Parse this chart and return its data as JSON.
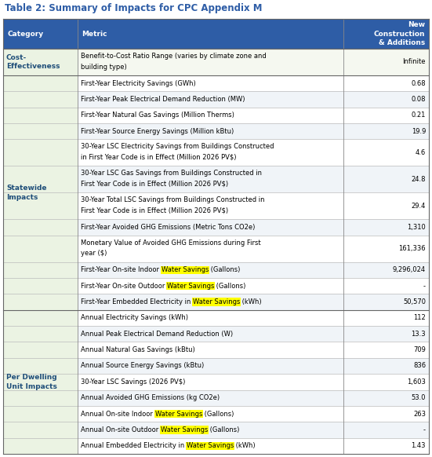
{
  "title": "Table 2: Summary of Impacts for CPC Appendix M",
  "title_color": "#2E5DA6",
  "header_bg": "#2E5DA6",
  "header_text_color": "#FFFFFF",
  "col_headers": [
    "Category",
    "Metric",
    "New\nConstruction\n& Additions"
  ],
  "category_bg": "#EBF3E3",
  "border_color": "#888888",
  "highlight_color": "#FFFF00",
  "rows": [
    {
      "category": "Cost-\nEffectiveness",
      "section_start": true,
      "section_end": true,
      "metric": "Benefit-to-Cost Ratio Range (varies by climate zone and\nbuilding type)",
      "metric_parts": null,
      "value": "Infinite",
      "row_bg": "#F5F8F0"
    },
    {
      "category": "",
      "section_start": false,
      "section_end": false,
      "metric": "First-Year Electricity Savings (GWh)",
      "metric_parts": null,
      "value": "0.68",
      "row_bg": "#FFFFFF"
    },
    {
      "category": "",
      "section_start": false,
      "section_end": false,
      "metric": "First-Year Peak Electrical Demand Reduction (MW)",
      "metric_parts": null,
      "value": "0.08",
      "row_bg": "#F0F4F8"
    },
    {
      "category": "",
      "section_start": false,
      "section_end": false,
      "metric": "First-Year Natural Gas Savings (Million Therms)",
      "metric_parts": null,
      "value": "0.21",
      "row_bg": "#FFFFFF"
    },
    {
      "category": "",
      "section_start": false,
      "section_end": false,
      "metric": "First-Year Source Energy Savings (Million kBtu)",
      "metric_parts": null,
      "value": "19.9",
      "row_bg": "#F0F4F8"
    },
    {
      "category": "",
      "section_start": false,
      "section_end": false,
      "metric": "30-Year LSC Electricity Savings from Buildings Constructed\nin First Year Code is in Effect (Million 2026 PV$)",
      "metric_parts": null,
      "value": "4.6",
      "row_bg": "#FFFFFF"
    },
    {
      "category": "Statewide\nImpacts",
      "section_start": true,
      "section_end": false,
      "metric": "30-Year LSC Gas Savings from Buildings Constructed in\nFirst Year Code is in Effect (Million 2026 PV$)",
      "metric_parts": null,
      "value": "24.8",
      "row_bg": "#F0F4F8"
    },
    {
      "category": "",
      "section_start": false,
      "section_end": false,
      "metric": "30-Year Total LSC Savings from Buildings Constructed in\nFirst Year Code is in Effect (Million 2026 PV$)",
      "metric_parts": null,
      "value": "29.4",
      "row_bg": "#FFFFFF"
    },
    {
      "category": "",
      "section_start": false,
      "section_end": false,
      "metric": "First-Year Avoided GHG Emissions (Metric Tons CO2e)",
      "metric_parts": null,
      "value": "1,310",
      "row_bg": "#F0F4F8"
    },
    {
      "category": "",
      "section_start": false,
      "section_end": false,
      "metric": "Monetary Value of Avoided GHG Emissions during First\nyear ($)",
      "metric_parts": null,
      "value": "161,336",
      "row_bg": "#FFFFFF"
    },
    {
      "category": "",
      "section_start": false,
      "section_end": false,
      "metric": null,
      "metric_parts": [
        [
          "First-Year On-site Indoor ",
          false
        ],
        [
          "Water Savings",
          true
        ],
        [
          " (Gallons)",
          false
        ]
      ],
      "value": "9,296,024",
      "row_bg": "#F0F4F8"
    },
    {
      "category": "",
      "section_start": false,
      "section_end": false,
      "metric": null,
      "metric_parts": [
        [
          "First-Year On-site Outdoor ",
          false
        ],
        [
          "Water Savings",
          true
        ],
        [
          " (Gallons)",
          false
        ]
      ],
      "value": "-",
      "row_bg": "#FFFFFF"
    },
    {
      "category": "",
      "section_start": false,
      "section_end": true,
      "metric": null,
      "metric_parts": [
        [
          "First-Year Embedded Electricity in ",
          false
        ],
        [
          "Water Savings",
          true
        ],
        [
          " (kWh)",
          false
        ]
      ],
      "value": "50,570",
      "row_bg": "#F0F4F8"
    },
    {
      "category": "",
      "section_start": false,
      "section_end": false,
      "metric": "Annual Electricity Savings (kWh)",
      "metric_parts": null,
      "value": "112",
      "row_bg": "#FFFFFF"
    },
    {
      "category": "",
      "section_start": false,
      "section_end": false,
      "metric": "Annual Peak Electrical Demand Reduction (W)",
      "metric_parts": null,
      "value": "13.3",
      "row_bg": "#F0F4F8"
    },
    {
      "category": "",
      "section_start": false,
      "section_end": false,
      "metric": "Annual Natural Gas Savings (kBtu)",
      "metric_parts": null,
      "value": "709",
      "row_bg": "#FFFFFF"
    },
    {
      "category": "Per Dwelling\nUnit Impacts",
      "section_start": true,
      "section_end": false,
      "metric": "Annual Source Energy Savings (kBtu)",
      "metric_parts": null,
      "value": "836",
      "row_bg": "#F0F4F8"
    },
    {
      "category": "",
      "section_start": false,
      "section_end": false,
      "metric": "30-Year LSC Savings (2026 PV$)",
      "metric_parts": null,
      "value": "1,603",
      "row_bg": "#FFFFFF"
    },
    {
      "category": "",
      "section_start": false,
      "section_end": false,
      "metric": "Annual Avoided GHG Emissions (kg CO2e)",
      "metric_parts": null,
      "value": "53.0",
      "row_bg": "#F0F4F8"
    },
    {
      "category": "",
      "section_start": false,
      "section_end": false,
      "metric": null,
      "metric_parts": [
        [
          "Annual On-site Indoor ",
          false
        ],
        [
          "Water Savings",
          true
        ],
        [
          " (Gallons)",
          false
        ]
      ],
      "value": "263",
      "row_bg": "#FFFFFF"
    },
    {
      "category": "",
      "section_start": false,
      "section_end": false,
      "metric": null,
      "metric_parts": [
        [
          "Annual On-site Outdoor ",
          false
        ],
        [
          "Water Savings",
          true
        ],
        [
          " (Gallons)",
          false
        ]
      ],
      "value": "-",
      "row_bg": "#F0F4F8"
    },
    {
      "category": "",
      "section_start": false,
      "section_end": true,
      "metric": null,
      "metric_parts": [
        [
          "Annual Embedded Electricity in ",
          false
        ],
        [
          "Water Savings",
          true
        ],
        [
          " (kWh)",
          false
        ]
      ],
      "value": "1.43",
      "row_bg": "#FFFFFF"
    }
  ],
  "sections": [
    {
      "label": "Cost-\nEffectiveness",
      "start": 0,
      "end": 0
    },
    {
      "label": "Statewide\nImpacts",
      "start": 1,
      "end": 12
    },
    {
      "label": "Per Dwelling\nUnit Impacts",
      "start": 13,
      "end": 21
    }
  ]
}
